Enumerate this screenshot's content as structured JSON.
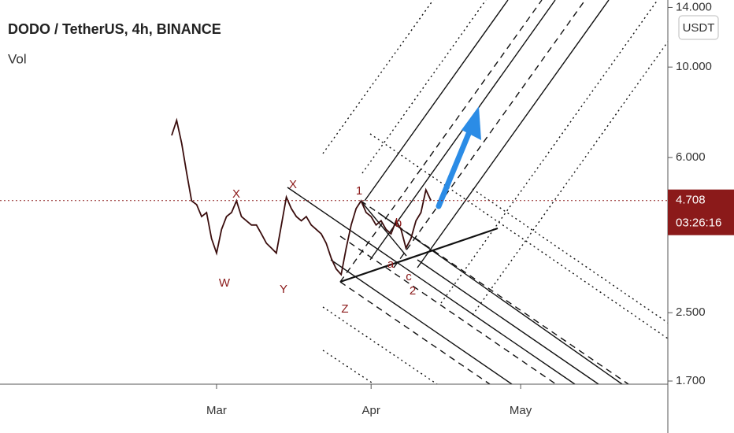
{
  "chart_data": {
    "type": "line",
    "title": "DODO / TetherUS, 4h, BINANCE",
    "subtitle": "Vol",
    "currency_button": "USDT",
    "countdown": "03:26:16",
    "log_scale": true,
    "color": "#3a0d0d",
    "last_price_color": "#8b1a1a",
    "categories": [
      null,
      null,
      null,
      null,
      null,
      null,
      null,
      null,
      null,
      "Mar",
      null,
      null,
      null,
      null,
      null,
      null,
      null,
      null,
      null,
      null,
      null,
      null,
      null,
      null,
      null,
      null,
      null,
      null,
      null,
      null,
      null,
      null,
      null,
      null,
      null,
      null,
      null,
      null,
      null,
      null,
      "Apr",
      null,
      null,
      null,
      null,
      null,
      null,
      null,
      null,
      null,
      null,
      null,
      null,
      null,
      null,
      null,
      null,
      null,
      null,
      null,
      null,
      null,
      null,
      null,
      null,
      null,
      null,
      null,
      null,
      null,
      "May",
      null,
      null,
      null,
      null,
      null,
      null,
      null,
      null,
      null,
      null,
      null,
      null,
      null,
      null,
      null,
      null,
      null,
      null,
      null,
      null,
      null,
      null,
      null,
      null,
      null,
      null,
      null,
      null,
      null,
      null
    ],
    "values": [
      6.8,
      7.4,
      6.5,
      5.5,
      4.7,
      4.6,
      4.3,
      4.4,
      3.8,
      3.5,
      4.0,
      4.3,
      4.4,
      4.7,
      4.3,
      4.2,
      4.1,
      4.1,
      3.9,
      3.7,
      3.6,
      3.5,
      4.1,
      4.8,
      4.5,
      4.3,
      4.2,
      4.3,
      4.1,
      4.0,
      3.9,
      3.7,
      3.4,
      3.2,
      3.1,
      3.6,
      4.1,
      4.5,
      4.7,
      4.4,
      4.3,
      4.1,
      4.2,
      4.0,
      3.9,
      4.2,
      4.0,
      3.6,
      3.8,
      4.2,
      4.4,
      5.0,
      4.708,
      null,
      null,
      null,
      null,
      null,
      null,
      null,
      null,
      null,
      null,
      null,
      null,
      null,
      null,
      null,
      null,
      null,
      null,
      null,
      null,
      null,
      null,
      null,
      null,
      null,
      null,
      null,
      null,
      null,
      null,
      null,
      null,
      null,
      null,
      null,
      null,
      null,
      null,
      null,
      null,
      null,
      null,
      null,
      null,
      null,
      null,
      null,
      null
    ],
    "ylim": [
      1.67,
      14.6
    ],
    "yticks": [
      {
        "value": 1.7,
        "label": "1.700"
      },
      {
        "value": 2.5,
        "label": "2.500"
      },
      {
        "value": 6,
        "label": "6.000"
      },
      {
        "value": 10,
        "label": "10.000"
      },
      {
        "value": 14,
        "label": "14.000"
      }
    ],
    "annotations": [
      "W",
      "X",
      "Y",
      "X",
      "Z",
      "1",
      "2",
      "a",
      "b",
      "c"
    ]
  }
}
